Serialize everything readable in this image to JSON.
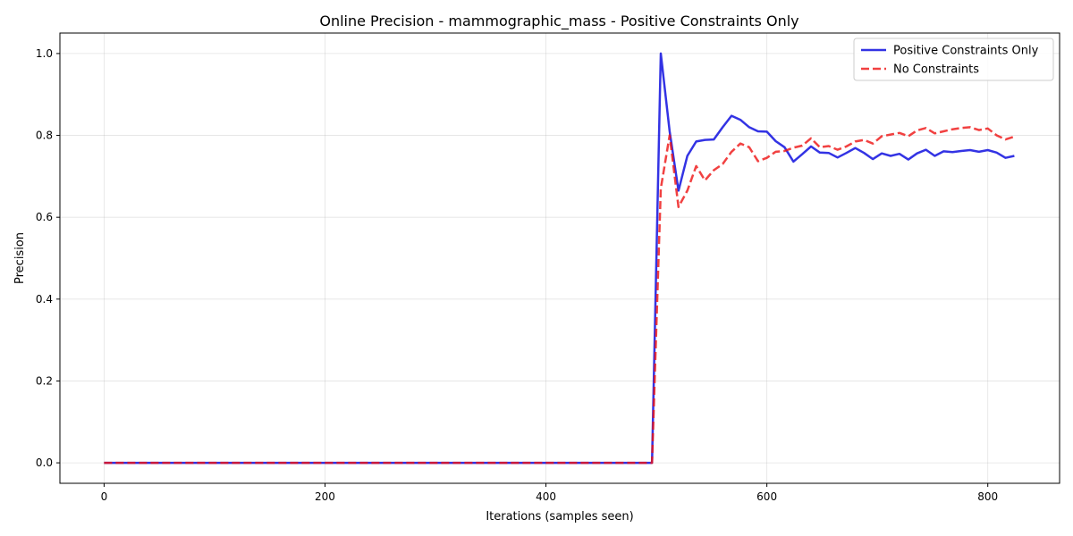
{
  "chart_data": {
    "type": "line",
    "title": "Online Precision - mammographic_mass - Positive Constraints Only",
    "xlabel": "Iterations (samples seen)",
    "ylabel": "Precision",
    "xlim": [
      -40,
      865
    ],
    "ylim": [
      -0.05,
      1.05
    ],
    "xticks": [
      0,
      200,
      400,
      600,
      800
    ],
    "xtick_labels": [
      "0",
      "200",
      "400",
      "600",
      "800"
    ],
    "yticks": [
      0,
      0.2,
      0.4,
      0.6,
      0.8,
      1.0
    ],
    "ytick_labels": [
      "0.0",
      "0.2",
      "0.4",
      "0.6",
      "0.8",
      "1.0"
    ],
    "grid": true,
    "legend_position": "top-right",
    "series": [
      {
        "name": "Positive Constraints Only",
        "color": "#0000dd",
        "style": "solid",
        "points": [
          [
            0,
            0
          ],
          [
            100,
            0
          ],
          [
            200,
            0
          ],
          [
            300,
            0
          ],
          [
            400,
            0
          ],
          [
            496,
            0
          ],
          [
            504,
            1.0
          ],
          [
            512,
            0.81
          ],
          [
            520,
            0.665
          ],
          [
            528,
            0.75
          ],
          [
            536,
            0.785
          ],
          [
            544,
            0.789
          ],
          [
            552,
            0.79
          ],
          [
            560,
            0.82
          ],
          [
            568,
            0.848
          ],
          [
            576,
            0.838
          ],
          [
            584,
            0.82
          ],
          [
            592,
            0.81
          ],
          [
            600,
            0.809
          ],
          [
            608,
            0.786
          ],
          [
            616,
            0.771
          ],
          [
            624,
            0.736
          ],
          [
            632,
            0.754
          ],
          [
            640,
            0.773
          ],
          [
            648,
            0.758
          ],
          [
            656,
            0.757
          ],
          [
            664,
            0.746
          ],
          [
            672,
            0.757
          ],
          [
            680,
            0.769
          ],
          [
            688,
            0.757
          ],
          [
            696,
            0.742
          ],
          [
            704,
            0.756
          ],
          [
            712,
            0.75
          ],
          [
            720,
            0.755
          ],
          [
            728,
            0.741
          ],
          [
            736,
            0.756
          ],
          [
            744,
            0.765
          ],
          [
            752,
            0.75
          ],
          [
            760,
            0.761
          ],
          [
            768,
            0.759
          ],
          [
            776,
            0.762
          ],
          [
            784,
            0.764
          ],
          [
            792,
            0.76
          ],
          [
            800,
            0.764
          ],
          [
            808,
            0.758
          ],
          [
            816,
            0.745
          ],
          [
            824,
            0.75
          ]
        ]
      },
      {
        "name": "No Constraints",
        "color": "#ee1111",
        "style": "dashed",
        "points": [
          [
            0,
            0
          ],
          [
            100,
            0
          ],
          [
            200,
            0
          ],
          [
            300,
            0
          ],
          [
            400,
            0
          ],
          [
            496,
            0
          ],
          [
            504,
            0.67
          ],
          [
            512,
            0.8
          ],
          [
            520,
            0.625
          ],
          [
            528,
            0.665
          ],
          [
            536,
            0.725
          ],
          [
            544,
            0.69
          ],
          [
            552,
            0.715
          ],
          [
            560,
            0.73
          ],
          [
            568,
            0.76
          ],
          [
            576,
            0.78
          ],
          [
            584,
            0.771
          ],
          [
            592,
            0.737
          ],
          [
            600,
            0.745
          ],
          [
            608,
            0.76
          ],
          [
            616,
            0.762
          ],
          [
            624,
            0.77
          ],
          [
            632,
            0.775
          ],
          [
            640,
            0.793
          ],
          [
            648,
            0.771
          ],
          [
            656,
            0.774
          ],
          [
            664,
            0.765
          ],
          [
            672,
            0.773
          ],
          [
            680,
            0.785
          ],
          [
            688,
            0.789
          ],
          [
            696,
            0.78
          ],
          [
            704,
            0.798
          ],
          [
            712,
            0.802
          ],
          [
            720,
            0.806
          ],
          [
            728,
            0.798
          ],
          [
            736,
            0.812
          ],
          [
            744,
            0.818
          ],
          [
            752,
            0.805
          ],
          [
            760,
            0.81
          ],
          [
            768,
            0.815
          ],
          [
            776,
            0.818
          ],
          [
            784,
            0.82
          ],
          [
            792,
            0.813
          ],
          [
            800,
            0.817
          ],
          [
            808,
            0.8
          ],
          [
            816,
            0.79
          ],
          [
            824,
            0.797
          ]
        ]
      }
    ]
  }
}
